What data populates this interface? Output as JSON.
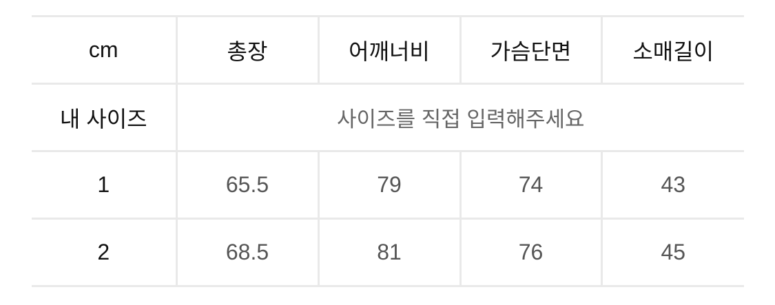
{
  "header": {
    "unit": "cm",
    "columns": [
      "총장",
      "어깨너비",
      "가슴단면",
      "소매길이"
    ]
  },
  "my_size": {
    "label": "내 사이즈",
    "placeholder": "사이즈를 직접 입력해주세요"
  },
  "rows": [
    {
      "size": "1",
      "values": [
        "65.5",
        "79",
        "74",
        "43"
      ]
    },
    {
      "size": "2",
      "values": [
        "68.5",
        "81",
        "76",
        "45"
      ]
    }
  ]
}
